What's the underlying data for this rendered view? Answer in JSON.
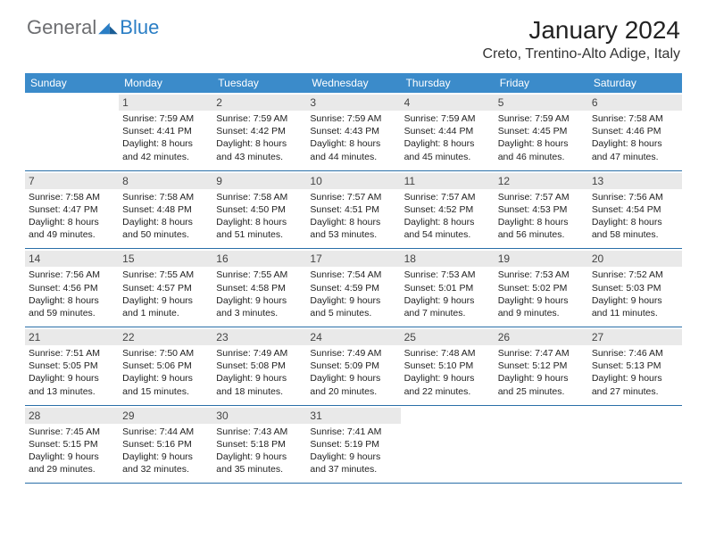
{
  "logo": {
    "part1": "General",
    "part2": "Blue"
  },
  "title": "January 2024",
  "subtitle": "Creto, Trentino-Alto Adige, Italy",
  "colors": {
    "header_bg": "#3b8bca",
    "header_text": "#ffffff",
    "daynum_bg": "#e9e9e9",
    "border": "#2a6fa8",
    "logo_gray": "#6d6e71",
    "logo_blue": "#2a7ec5"
  },
  "day_headers": [
    "Sunday",
    "Monday",
    "Tuesday",
    "Wednesday",
    "Thursday",
    "Friday",
    "Saturday"
  ],
  "weeks": [
    [
      {
        "num": "",
        "sunrise": "",
        "sunset": "",
        "daylight": ""
      },
      {
        "num": "1",
        "sunrise": "Sunrise: 7:59 AM",
        "sunset": "Sunset: 4:41 PM",
        "daylight": "Daylight: 8 hours and 42 minutes."
      },
      {
        "num": "2",
        "sunrise": "Sunrise: 7:59 AM",
        "sunset": "Sunset: 4:42 PM",
        "daylight": "Daylight: 8 hours and 43 minutes."
      },
      {
        "num": "3",
        "sunrise": "Sunrise: 7:59 AM",
        "sunset": "Sunset: 4:43 PM",
        "daylight": "Daylight: 8 hours and 44 minutes."
      },
      {
        "num": "4",
        "sunrise": "Sunrise: 7:59 AM",
        "sunset": "Sunset: 4:44 PM",
        "daylight": "Daylight: 8 hours and 45 minutes."
      },
      {
        "num": "5",
        "sunrise": "Sunrise: 7:59 AM",
        "sunset": "Sunset: 4:45 PM",
        "daylight": "Daylight: 8 hours and 46 minutes."
      },
      {
        "num": "6",
        "sunrise": "Sunrise: 7:58 AM",
        "sunset": "Sunset: 4:46 PM",
        "daylight": "Daylight: 8 hours and 47 minutes."
      }
    ],
    [
      {
        "num": "7",
        "sunrise": "Sunrise: 7:58 AM",
        "sunset": "Sunset: 4:47 PM",
        "daylight": "Daylight: 8 hours and 49 minutes."
      },
      {
        "num": "8",
        "sunrise": "Sunrise: 7:58 AM",
        "sunset": "Sunset: 4:48 PM",
        "daylight": "Daylight: 8 hours and 50 minutes."
      },
      {
        "num": "9",
        "sunrise": "Sunrise: 7:58 AM",
        "sunset": "Sunset: 4:50 PM",
        "daylight": "Daylight: 8 hours and 51 minutes."
      },
      {
        "num": "10",
        "sunrise": "Sunrise: 7:57 AM",
        "sunset": "Sunset: 4:51 PM",
        "daylight": "Daylight: 8 hours and 53 minutes."
      },
      {
        "num": "11",
        "sunrise": "Sunrise: 7:57 AM",
        "sunset": "Sunset: 4:52 PM",
        "daylight": "Daylight: 8 hours and 54 minutes."
      },
      {
        "num": "12",
        "sunrise": "Sunrise: 7:57 AM",
        "sunset": "Sunset: 4:53 PM",
        "daylight": "Daylight: 8 hours and 56 minutes."
      },
      {
        "num": "13",
        "sunrise": "Sunrise: 7:56 AM",
        "sunset": "Sunset: 4:54 PM",
        "daylight": "Daylight: 8 hours and 58 minutes."
      }
    ],
    [
      {
        "num": "14",
        "sunrise": "Sunrise: 7:56 AM",
        "sunset": "Sunset: 4:56 PM",
        "daylight": "Daylight: 8 hours and 59 minutes."
      },
      {
        "num": "15",
        "sunrise": "Sunrise: 7:55 AM",
        "sunset": "Sunset: 4:57 PM",
        "daylight": "Daylight: 9 hours and 1 minute."
      },
      {
        "num": "16",
        "sunrise": "Sunrise: 7:55 AM",
        "sunset": "Sunset: 4:58 PM",
        "daylight": "Daylight: 9 hours and 3 minutes."
      },
      {
        "num": "17",
        "sunrise": "Sunrise: 7:54 AM",
        "sunset": "Sunset: 4:59 PM",
        "daylight": "Daylight: 9 hours and 5 minutes."
      },
      {
        "num": "18",
        "sunrise": "Sunrise: 7:53 AM",
        "sunset": "Sunset: 5:01 PM",
        "daylight": "Daylight: 9 hours and 7 minutes."
      },
      {
        "num": "19",
        "sunrise": "Sunrise: 7:53 AM",
        "sunset": "Sunset: 5:02 PM",
        "daylight": "Daylight: 9 hours and 9 minutes."
      },
      {
        "num": "20",
        "sunrise": "Sunrise: 7:52 AM",
        "sunset": "Sunset: 5:03 PM",
        "daylight": "Daylight: 9 hours and 11 minutes."
      }
    ],
    [
      {
        "num": "21",
        "sunrise": "Sunrise: 7:51 AM",
        "sunset": "Sunset: 5:05 PM",
        "daylight": "Daylight: 9 hours and 13 minutes."
      },
      {
        "num": "22",
        "sunrise": "Sunrise: 7:50 AM",
        "sunset": "Sunset: 5:06 PM",
        "daylight": "Daylight: 9 hours and 15 minutes."
      },
      {
        "num": "23",
        "sunrise": "Sunrise: 7:49 AM",
        "sunset": "Sunset: 5:08 PM",
        "daylight": "Daylight: 9 hours and 18 minutes."
      },
      {
        "num": "24",
        "sunrise": "Sunrise: 7:49 AM",
        "sunset": "Sunset: 5:09 PM",
        "daylight": "Daylight: 9 hours and 20 minutes."
      },
      {
        "num": "25",
        "sunrise": "Sunrise: 7:48 AM",
        "sunset": "Sunset: 5:10 PM",
        "daylight": "Daylight: 9 hours and 22 minutes."
      },
      {
        "num": "26",
        "sunrise": "Sunrise: 7:47 AM",
        "sunset": "Sunset: 5:12 PM",
        "daylight": "Daylight: 9 hours and 25 minutes."
      },
      {
        "num": "27",
        "sunrise": "Sunrise: 7:46 AM",
        "sunset": "Sunset: 5:13 PM",
        "daylight": "Daylight: 9 hours and 27 minutes."
      }
    ],
    [
      {
        "num": "28",
        "sunrise": "Sunrise: 7:45 AM",
        "sunset": "Sunset: 5:15 PM",
        "daylight": "Daylight: 9 hours and 29 minutes."
      },
      {
        "num": "29",
        "sunrise": "Sunrise: 7:44 AM",
        "sunset": "Sunset: 5:16 PM",
        "daylight": "Daylight: 9 hours and 32 minutes."
      },
      {
        "num": "30",
        "sunrise": "Sunrise: 7:43 AM",
        "sunset": "Sunset: 5:18 PM",
        "daylight": "Daylight: 9 hours and 35 minutes."
      },
      {
        "num": "31",
        "sunrise": "Sunrise: 7:41 AM",
        "sunset": "Sunset: 5:19 PM",
        "daylight": "Daylight: 9 hours and 37 minutes."
      },
      {
        "num": "",
        "sunrise": "",
        "sunset": "",
        "daylight": ""
      },
      {
        "num": "",
        "sunrise": "",
        "sunset": "",
        "daylight": ""
      },
      {
        "num": "",
        "sunrise": "",
        "sunset": "",
        "daylight": ""
      }
    ]
  ]
}
